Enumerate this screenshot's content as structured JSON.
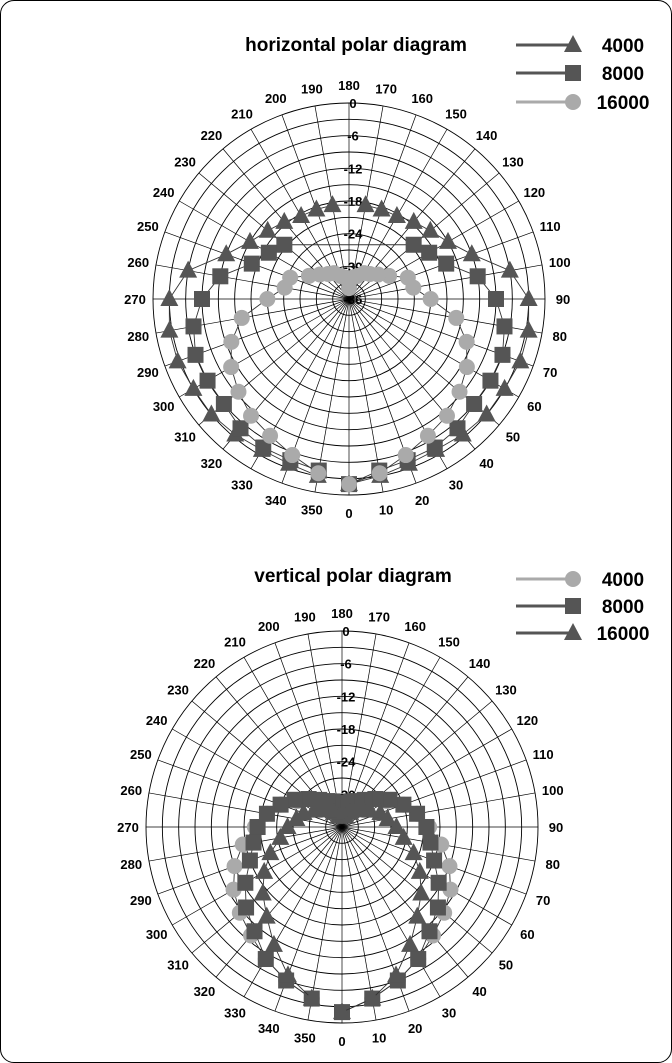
{
  "chart_data": [
    {
      "type": "polar-line",
      "title": "horizontal polar diagram",
      "angles_deg": [
        0,
        10,
        20,
        30,
        40,
        50,
        60,
        70,
        80,
        90,
        100,
        110,
        120,
        130,
        140,
        150,
        160,
        170,
        180,
        190,
        200,
        210,
        220,
        230,
        240,
        250,
        260,
        270,
        280,
        290,
        300,
        310,
        320,
        330,
        340,
        350
      ],
      "angle_tick_labels": [
        "0",
        "10",
        "20",
        "30",
        "40",
        "50",
        "60",
        "70",
        "80",
        "90",
        "100",
        "110",
        "120",
        "130",
        "140",
        "150",
        "160",
        "170",
        "180",
        "190",
        "200",
        "210",
        "220",
        "230",
        "240",
        "250",
        "260",
        "270",
        "280",
        "290",
        "300",
        "310",
        "320",
        "330",
        "340",
        "350"
      ],
      "radial_tick_labels": [
        "0",
        "-6",
        "-12",
        "-18",
        "-24",
        "-30",
        "-36"
      ],
      "radial_range_db": [
        -36,
        0
      ],
      "grid": true,
      "legend_position": "top-right",
      "series": [
        {
          "name": "4000",
          "color": "#555555",
          "marker": "triangle",
          "points": [
            [
              0,
              -2
            ],
            [
              10,
              -3
            ],
            [
              20,
              -3.8
            ],
            [
              30,
              -4
            ],
            [
              40,
              -3.5
            ],
            [
              50,
              -3
            ],
            [
              60,
              -3
            ],
            [
              70,
              -2.5
            ],
            [
              80,
              -2.5
            ],
            [
              90,
              -3
            ],
            [
              100,
              -6
            ],
            [
              110,
              -12
            ],
            [
              120,
              -15
            ],
            [
              130,
              -16.5
            ],
            [
              140,
              -17.5
            ],
            [
              150,
              -18.4
            ],
            [
              160,
              -18.5
            ],
            [
              170,
              -18.5
            ],
            [
              190,
              -18.5
            ],
            [
              200,
              -18.5
            ],
            [
              210,
              -18.4
            ],
            [
              220,
              -17.5
            ],
            [
              230,
              -16.5
            ],
            [
              240,
              -15
            ],
            [
              250,
              -12
            ],
            [
              260,
              -6
            ],
            [
              270,
              -3
            ],
            [
              280,
              -2.5
            ],
            [
              290,
              -2.5
            ],
            [
              300,
              -3
            ],
            [
              310,
              -3
            ],
            [
              320,
              -3.5
            ],
            [
              330,
              -4
            ],
            [
              340,
              -3.8
            ],
            [
              350,
              -3
            ]
          ]
        },
        {
          "name": "8000",
          "color": "#555555",
          "marker": "square",
          "points": [
            [
              0,
              -2
            ],
            [
              10,
              -4
            ],
            [
              20,
              -4.5
            ],
            [
              30,
              -4.5
            ],
            [
              40,
              -5
            ],
            [
              50,
              -6
            ],
            [
              60,
              -6
            ],
            [
              70,
              -6
            ],
            [
              80,
              -7
            ],
            [
              90,
              -9
            ],
            [
              100,
              -12
            ],
            [
              110,
              -17
            ],
            [
              120,
              -19
            ],
            [
              130,
              -20.5
            ],
            [
              230,
              -20.5
            ],
            [
              240,
              -19
            ],
            [
              250,
              -17
            ],
            [
              260,
              -12
            ],
            [
              270,
              -9
            ],
            [
              280,
              -7
            ],
            [
              290,
              -6
            ],
            [
              300,
              -6
            ],
            [
              310,
              -6
            ],
            [
              320,
              -5
            ],
            [
              330,
              -4.5
            ],
            [
              340,
              -4.5
            ],
            [
              350,
              -4
            ]
          ]
        },
        {
          "name": "16000",
          "color": "#aaaaaa",
          "marker": "circle",
          "points": [
            [
              0,
              -2
            ],
            [
              10,
              -3.5
            ],
            [
              20,
              -5.5
            ],
            [
              30,
              -7
            ],
            [
              40,
              -8
            ],
            [
              50,
              -9.5
            ],
            [
              60,
              -11
            ],
            [
              70,
              -13
            ],
            [
              80,
              -16
            ],
            [
              90,
              -21
            ],
            [
              100,
              -24
            ],
            [
              110,
              -24.5
            ],
            [
              120,
              -27.5
            ],
            [
              130,
              -29
            ],
            [
              140,
              -30
            ],
            [
              150,
              -30.5
            ],
            [
              160,
              -31.5
            ],
            [
              170,
              -32
            ],
            [
              180,
              -34
            ],
            [
              190,
              -32
            ],
            [
              200,
              -31.5
            ],
            [
              210,
              -30.5
            ],
            [
              220,
              -30
            ],
            [
              230,
              -29
            ],
            [
              240,
              -27.5
            ],
            [
              250,
              -24.5
            ],
            [
              260,
              -24
            ],
            [
              270,
              -21
            ],
            [
              280,
              -16
            ],
            [
              290,
              -13
            ],
            [
              300,
              -11
            ],
            [
              310,
              -9.5
            ],
            [
              320,
              -8
            ],
            [
              330,
              -7
            ],
            [
              340,
              -5.5
            ],
            [
              350,
              -3.5
            ]
          ]
        }
      ]
    },
    {
      "type": "polar-line",
      "title": "vertical polar diagram",
      "angles_deg": [
        0,
        10,
        20,
        30,
        40,
        50,
        60,
        70,
        80,
        90,
        100,
        110,
        120,
        130,
        140,
        150,
        160,
        170,
        180,
        190,
        200,
        210,
        220,
        230,
        240,
        250,
        260,
        270,
        280,
        290,
        300,
        310,
        320,
        330,
        340,
        350
      ],
      "angle_tick_labels": [
        "0",
        "10",
        "20",
        "30",
        "40",
        "50",
        "60",
        "70",
        "80",
        "90",
        "100",
        "110",
        "120",
        "130",
        "140",
        "150",
        "160",
        "170",
        "180",
        "190",
        "200",
        "210",
        "220",
        "230",
        "240",
        "250",
        "260",
        "270",
        "280",
        "290",
        "300",
        "310",
        "320",
        "330",
        "340",
        "350"
      ],
      "radial_tick_labels": [
        "0",
        "-6",
        "-12",
        "-18",
        "-24",
        "-30"
      ],
      "radial_range_db": [
        -36,
        0
      ],
      "grid": true,
      "legend_position": "top-right",
      "series": [
        {
          "name": "4000",
          "color": "#aaaaaa",
          "marker": "circle",
          "points": [
            [
              0,
              -2
            ],
            [
              10,
              -4
            ],
            [
              20,
              -6
            ],
            [
              30,
              -8
            ],
            [
              40,
              -10
            ],
            [
              50,
              -11.5
            ],
            [
              60,
              -13
            ],
            [
              70,
              -15
            ],
            [
              80,
              -17.5
            ],
            [
              90,
              -20
            ],
            [
              100,
              -22
            ],
            [
              110,
              -24
            ],
            [
              120,
              -26.5
            ],
            [
              130,
              -28
            ],
            [
              140,
              -29.5
            ],
            [
              150,
              -31
            ],
            [
              160,
              -32
            ],
            [
              170,
              -32.5
            ],
            [
              180,
              -33
            ],
            [
              190,
              -32.5
            ],
            [
              200,
              -32
            ],
            [
              210,
              -31
            ],
            [
              220,
              -29.5
            ],
            [
              230,
              -28
            ],
            [
              240,
              -26.5
            ],
            [
              250,
              -24
            ],
            [
              260,
              -22
            ],
            [
              270,
              -20
            ],
            [
              280,
              -17.5
            ],
            [
              290,
              -15
            ],
            [
              300,
              -13
            ],
            [
              310,
              -11.5
            ],
            [
              320,
              -10
            ],
            [
              330,
              -8
            ],
            [
              340,
              -6
            ],
            [
              350,
              -4
            ]
          ]
        },
        {
          "name": "8000",
          "color": "#555555",
          "marker": "square",
          "points": [
            [
              0,
              -2
            ],
            [
              10,
              -4
            ],
            [
              20,
              -6
            ],
            [
              30,
              -8
            ],
            [
              40,
              -11
            ],
            [
              50,
              -13
            ],
            [
              60,
              -15.5
            ],
            [
              70,
              -18
            ],
            [
              80,
              -19.5
            ],
            [
              90,
              -20.5
            ],
            [
              100,
              -22
            ],
            [
              110,
              -24
            ],
            [
              120,
              -26
            ],
            [
              130,
              -28
            ],
            [
              140,
              -29.5
            ],
            [
              150,
              -30.5
            ],
            [
              160,
              -31
            ],
            [
              170,
              -31.5
            ],
            [
              190,
              -31.5
            ],
            [
              200,
              -31
            ],
            [
              210,
              -30.5
            ],
            [
              220,
              -29.5
            ],
            [
              230,
              -28
            ],
            [
              240,
              -26
            ],
            [
              250,
              -24
            ],
            [
              260,
              -22
            ],
            [
              270,
              -20.5
            ],
            [
              280,
              -19.5
            ],
            [
              290,
              -18
            ],
            [
              300,
              -15.5
            ],
            [
              310,
              -13
            ],
            [
              320,
              -11
            ],
            [
              330,
              -8
            ],
            [
              340,
              -6
            ],
            [
              350,
              -4
            ]
          ]
        },
        {
          "name": "16000",
          "color": "#555555",
          "marker": "triangle",
          "points": [
            [
              0,
              -2
            ],
            [
              10,
              -4
            ],
            [
              20,
              -7
            ],
            [
              30,
              -11
            ],
            [
              40,
              -14.5
            ],
            [
              50,
              -17
            ],
            [
              60,
              -19.5
            ],
            [
              70,
              -22
            ],
            [
              80,
              -24.5
            ],
            [
              90,
              -26
            ],
            [
              100,
              -27.5
            ],
            [
              110,
              -28.5
            ],
            [
              120,
              -30
            ],
            [
              130,
              -31
            ],
            [
              140,
              -32
            ],
            [
              150,
              -33
            ],
            [
              160,
              -34
            ],
            [
              170,
              -34
            ],
            [
              180,
              -34
            ],
            [
              190,
              -34
            ],
            [
              200,
              -34
            ],
            [
              210,
              -33
            ],
            [
              220,
              -32
            ],
            [
              230,
              -31
            ],
            [
              240,
              -30
            ],
            [
              250,
              -28.5
            ],
            [
              260,
              -27.5
            ],
            [
              270,
              -26
            ],
            [
              280,
              -24.5
            ],
            [
              290,
              -22
            ],
            [
              300,
              -19.5
            ],
            [
              310,
              -17
            ],
            [
              320,
              -14.5
            ],
            [
              330,
              -11
            ],
            [
              340,
              -7
            ],
            [
              350,
              -4
            ]
          ]
        }
      ]
    }
  ]
}
